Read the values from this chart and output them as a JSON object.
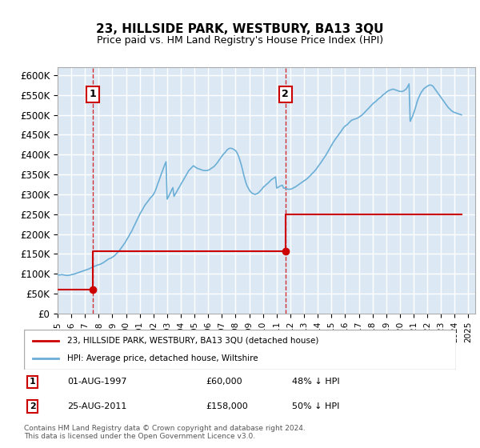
{
  "title": "23, HILLSIDE PARK, WESTBURY, BA13 3QU",
  "subtitle": "Price paid vs. HM Land Registry's House Price Index (HPI)",
  "ylabel_color": "#000000",
  "background_color": "#dce9f5",
  "plot_bg_color": "#dce9f5",
  "grid_color": "#ffffff",
  "ylim": [
    0,
    620000
  ],
  "yticks": [
    0,
    50000,
    100000,
    150000,
    200000,
    250000,
    300000,
    350000,
    400000,
    450000,
    500000,
    550000,
    600000
  ],
  "ytick_labels": [
    "£0",
    "£50K",
    "£100K",
    "£150K",
    "£200K",
    "£250K",
    "£300K",
    "£350K",
    "£400K",
    "£450K",
    "£500K",
    "£550K",
    "£600K"
  ],
  "xlim_start": 1995.0,
  "xlim_end": 2025.5,
  "xtick_years": [
    1995,
    1996,
    1997,
    1998,
    1999,
    2000,
    2001,
    2002,
    2003,
    2004,
    2005,
    2006,
    2007,
    2008,
    2009,
    2010,
    2011,
    2012,
    2013,
    2014,
    2015,
    2016,
    2017,
    2018,
    2019,
    2020,
    2021,
    2022,
    2023,
    2024,
    2025
  ],
  "sale1_date": 1997.58,
  "sale1_price": 60000,
  "sale1_label": "1",
  "sale1_text": "01-AUG-1997    £60,000    48% ↓ HPI",
  "sale2_date": 2011.64,
  "sale2_price": 158000,
  "sale2_label": "2",
  "sale2_text": "25-AUG-2011    £158,000    50% ↓ HPI",
  "red_line_color": "#cc0000",
  "blue_line_color": "#6baed6",
  "vline_color": "#cc0000",
  "legend_label_red": "23, HILLSIDE PARK, WESTBURY, BA13 3QU (detached house)",
  "legend_label_blue": "HPI: Average price, detached house, Wiltshire",
  "footnote": "Contains HM Land Registry data © Crown copyright and database right 2024.\nThis data is licensed under the Open Government Licence v3.0.",
  "hpi_dates": [
    1995.0,
    1995.08,
    1995.17,
    1995.25,
    1995.33,
    1995.42,
    1995.5,
    1995.58,
    1995.67,
    1995.75,
    1995.83,
    1995.92,
    1996.0,
    1996.08,
    1996.17,
    1996.25,
    1996.33,
    1996.42,
    1996.5,
    1996.58,
    1996.67,
    1996.75,
    1996.83,
    1996.92,
    1997.0,
    1997.08,
    1997.17,
    1997.25,
    1997.33,
    1997.42,
    1997.5,
    1997.58,
    1997.67,
    1997.75,
    1997.83,
    1997.92,
    1998.0,
    1998.08,
    1998.17,
    1998.25,
    1998.33,
    1998.42,
    1998.5,
    1998.58,
    1998.67,
    1998.75,
    1998.83,
    1998.92,
    1999.0,
    1999.08,
    1999.17,
    1999.25,
    1999.33,
    1999.42,
    1999.5,
    1999.58,
    1999.67,
    1999.75,
    1999.83,
    1999.92,
    2000.0,
    2000.08,
    2000.17,
    2000.25,
    2000.33,
    2000.42,
    2000.5,
    2000.58,
    2000.67,
    2000.75,
    2000.83,
    2000.92,
    2001.0,
    2001.08,
    2001.17,
    2001.25,
    2001.33,
    2001.42,
    2001.5,
    2001.58,
    2001.67,
    2001.75,
    2001.83,
    2001.92,
    2002.0,
    2002.08,
    2002.17,
    2002.25,
    2002.33,
    2002.42,
    2002.5,
    2002.58,
    2002.67,
    2002.75,
    2002.83,
    2002.92,
    2003.0,
    2003.08,
    2003.17,
    2003.25,
    2003.33,
    2003.42,
    2003.5,
    2003.58,
    2003.67,
    2003.75,
    2003.83,
    2003.92,
    2004.0,
    2004.08,
    2004.17,
    2004.25,
    2004.33,
    2004.42,
    2004.5,
    2004.58,
    2004.67,
    2004.75,
    2004.83,
    2004.92,
    2005.0,
    2005.08,
    2005.17,
    2005.25,
    2005.33,
    2005.42,
    2005.5,
    2005.58,
    2005.67,
    2005.75,
    2005.83,
    2005.92,
    2006.0,
    2006.08,
    2006.17,
    2006.25,
    2006.33,
    2006.42,
    2006.5,
    2006.58,
    2006.67,
    2006.75,
    2006.83,
    2006.92,
    2007.0,
    2007.08,
    2007.17,
    2007.25,
    2007.33,
    2007.42,
    2007.5,
    2007.58,
    2007.67,
    2007.75,
    2007.83,
    2007.92,
    2008.0,
    2008.08,
    2008.17,
    2008.25,
    2008.33,
    2008.42,
    2008.5,
    2008.58,
    2008.67,
    2008.75,
    2008.83,
    2008.92,
    2009.0,
    2009.08,
    2009.17,
    2009.25,
    2009.33,
    2009.42,
    2009.5,
    2009.58,
    2009.67,
    2009.75,
    2009.83,
    2009.92,
    2010.0,
    2010.08,
    2010.17,
    2010.25,
    2010.33,
    2010.42,
    2010.5,
    2010.58,
    2010.67,
    2010.75,
    2010.83,
    2010.92,
    2011.0,
    2011.08,
    2011.17,
    2011.25,
    2011.33,
    2011.42,
    2011.5,
    2011.58,
    2011.67,
    2011.75,
    2011.83,
    2011.92,
    2012.0,
    2012.08,
    2012.17,
    2012.25,
    2012.33,
    2012.42,
    2012.5,
    2012.58,
    2012.67,
    2012.75,
    2012.83,
    2012.92,
    2013.0,
    2013.08,
    2013.17,
    2013.25,
    2013.33,
    2013.42,
    2013.5,
    2013.58,
    2013.67,
    2013.75,
    2013.83,
    2013.92,
    2014.0,
    2014.08,
    2014.17,
    2014.25,
    2014.33,
    2014.42,
    2014.5,
    2014.58,
    2014.67,
    2014.75,
    2014.83,
    2014.92,
    2015.0,
    2015.08,
    2015.17,
    2015.25,
    2015.33,
    2015.42,
    2015.5,
    2015.58,
    2015.67,
    2015.75,
    2015.83,
    2015.92,
    2016.0,
    2016.08,
    2016.17,
    2016.25,
    2016.33,
    2016.42,
    2016.5,
    2016.58,
    2016.67,
    2016.75,
    2016.83,
    2016.92,
    2017.0,
    2017.08,
    2017.17,
    2017.25,
    2017.33,
    2017.42,
    2017.5,
    2017.58,
    2017.67,
    2017.75,
    2017.83,
    2017.92,
    2018.0,
    2018.08,
    2018.17,
    2018.25,
    2018.33,
    2018.42,
    2018.5,
    2018.58,
    2018.67,
    2018.75,
    2018.83,
    2018.92,
    2019.0,
    2019.08,
    2019.17,
    2019.25,
    2019.33,
    2019.42,
    2019.5,
    2019.58,
    2019.67,
    2019.75,
    2019.83,
    2019.92,
    2020.0,
    2020.08,
    2020.17,
    2020.25,
    2020.33,
    2020.42,
    2020.5,
    2020.58,
    2020.67,
    2020.75,
    2020.83,
    2020.92,
    2021.0,
    2021.08,
    2021.17,
    2021.25,
    2021.33,
    2021.42,
    2021.5,
    2021.58,
    2021.67,
    2021.75,
    2021.83,
    2021.92,
    2022.0,
    2022.08,
    2022.17,
    2022.25,
    2022.33,
    2022.42,
    2022.5,
    2022.58,
    2022.67,
    2022.75,
    2022.83,
    2022.92,
    2023.0,
    2023.08,
    2023.17,
    2023.25,
    2023.33,
    2023.42,
    2023.5,
    2023.58,
    2023.67,
    2023.75,
    2023.83,
    2023.92,
    2024.0,
    2024.08,
    2024.17,
    2024.25,
    2024.33,
    2024.42,
    2024.5
  ],
  "hpi_values": [
    97000,
    97500,
    97200,
    97800,
    98000,
    97500,
    97000,
    96500,
    96000,
    96200,
    96500,
    97000,
    98000,
    98500,
    99000,
    100000,
    101000,
    102000,
    103000,
    104000,
    105000,
    106000,
    107000,
    108000,
    109000,
    110000,
    111000,
    112000,
    113000,
    115000,
    116000,
    117000,
    118500,
    120000,
    121000,
    122000,
    123000,
    124000,
    125000,
    126500,
    128000,
    130000,
    132000,
    134000,
    136000,
    138000,
    139000,
    140000,
    142000,
    144000,
    146000,
    149000,
    152000,
    155000,
    158000,
    162000,
    166000,
    170000,
    174000,
    178000,
    183000,
    188000,
    193000,
    198000,
    203000,
    208000,
    214000,
    220000,
    226000,
    232000,
    238000,
    244000,
    250000,
    255000,
    260000,
    265000,
    270000,
    275000,
    278000,
    282000,
    286000,
    290000,
    293000,
    296000,
    300000,
    305000,
    312000,
    320000,
    328000,
    336000,
    344000,
    352000,
    360000,
    368000,
    375000,
    382000,
    288000,
    293000,
    299000,
    305000,
    311000,
    317000,
    295000,
    300000,
    305000,
    310000,
    315000,
    320000,
    325000,
    330000,
    335000,
    340000,
    345000,
    350000,
    355000,
    360000,
    363000,
    366000,
    369000,
    372000,
    370000,
    368000,
    366000,
    365000,
    364000,
    363000,
    362000,
    361000,
    360000,
    360000,
    360000,
    360000,
    361000,
    362000,
    364000,
    366000,
    368000,
    370000,
    373000,
    376000,
    380000,
    384000,
    388000,
    392000,
    396000,
    400000,
    403000,
    406000,
    410000,
    413000,
    415000,
    416000,
    416000,
    415000,
    414000,
    412000,
    410000,
    406000,
    400000,
    393000,
    384000,
    374000,
    363000,
    351000,
    340000,
    330000,
    322000,
    316000,
    311000,
    307000,
    304000,
    302000,
    301000,
    300000,
    301000,
    302000,
    304000,
    307000,
    310000,
    313000,
    317000,
    320000,
    322000,
    325000,
    327000,
    330000,
    333000,
    336000,
    338000,
    340000,
    342000,
    344000,
    316000,
    317000,
    319000,
    321000,
    322000,
    323000,
    316000,
    316000,
    314000,
    314000,
    313000,
    313000,
    313000,
    314000,
    315000,
    317000,
    318000,
    320000,
    322000,
    324000,
    326000,
    328000,
    330000,
    332000,
    334000,
    336000,
    338000,
    340000,
    343000,
    346000,
    349000,
    352000,
    355000,
    358000,
    361000,
    365000,
    369000,
    373000,
    377000,
    381000,
    385000,
    390000,
    394000,
    398000,
    403000,
    408000,
    413000,
    418000,
    423000,
    428000,
    433000,
    437000,
    441000,
    445000,
    449000,
    453000,
    457000,
    461000,
    465000,
    469000,
    472000,
    474000,
    476000,
    479000,
    482000,
    485000,
    487000,
    488000,
    489000,
    490000,
    491000,
    492000,
    494000,
    496000,
    498000,
    500000,
    503000,
    506000,
    509000,
    512000,
    515000,
    518000,
    521000,
    524000,
    527000,
    530000,
    532000,
    534000,
    537000,
    540000,
    542000,
    544000,
    547000,
    550000,
    552000,
    554000,
    557000,
    559000,
    561000,
    562000,
    563000,
    564000,
    565000,
    564000,
    563000,
    562000,
    561000,
    560000,
    559000,
    559000,
    559000,
    560000,
    562000,
    564000,
    567000,
    572000,
    578000,
    484000,
    490000,
    496000,
    504000,
    512000,
    522000,
    532000,
    540000,
    547000,
    553000,
    558000,
    562000,
    566000,
    568000,
    570000,
    572000,
    574000,
    575000,
    575000,
    574000,
    572000,
    568000,
    564000,
    560000,
    556000,
    552000,
    548000,
    544000,
    540000,
    536000,
    532000,
    528000,
    524000,
    520000,
    517000,
    514000,
    511000,
    509000,
    507000,
    506000,
    505000,
    504000,
    503000,
    502000,
    501000,
    500000,
    499000,
    498000,
    497000,
    496000,
    495000,
    494000,
    493000,
    492000,
    491000
  ],
  "red_line_dates": [
    1995.0,
    1997.58,
    1997.58,
    2011.64,
    2011.64,
    2024.5
  ],
  "red_line_values": [
    60000,
    60000,
    158000,
    158000,
    250000,
    250000
  ]
}
